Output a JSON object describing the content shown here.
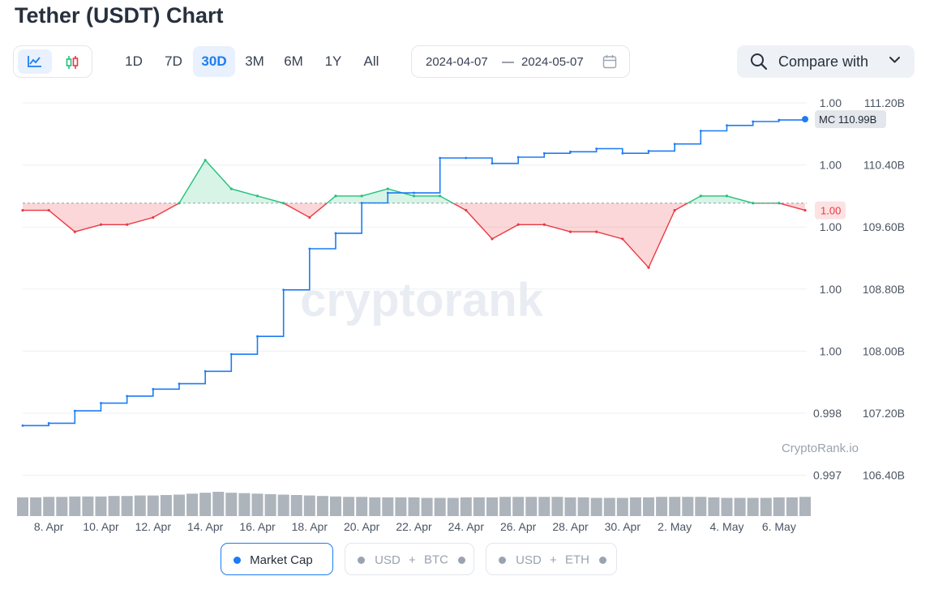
{
  "page": {
    "title": "Tether (USDT) Chart"
  },
  "toolbar": {
    "chart_types": [
      {
        "name": "line-chart-icon",
        "active": true
      },
      {
        "name": "candlestick-chart-icon",
        "active": false
      }
    ],
    "ranges": [
      "1D",
      "7D",
      "30D",
      "3M",
      "6M",
      "1Y",
      "All"
    ],
    "active_range": "30D",
    "date_from": "2024-04-07",
    "date_sep": "—",
    "date_to": "2024-05-07",
    "compare_label": "Compare with",
    "icons": {
      "calendar": "calendar-icon",
      "search": "search-icon",
      "chevron": "chevron-down-icon"
    }
  },
  "legend": {
    "market_cap": "Market Cap",
    "usd_btc": {
      "left": "USD",
      "plus": "+",
      "right": "BTC"
    },
    "usd_eth": {
      "left": "USD",
      "plus": "+",
      "right": "ETH"
    }
  },
  "watermark_small": "CryptoRank.io",
  "watermark_big": "cryptorank",
  "colors": {
    "marketcap": "#1c7cf4",
    "up": "#22c07a",
    "down": "#ea3943",
    "grid": "#eceff3",
    "axis_text": "#4b5563"
  },
  "chart_data": {
    "type": "line",
    "x_labels": [
      "8. Apr",
      "10. Apr",
      "12. Apr",
      "14. Apr",
      "16. Apr",
      "18. Apr",
      "20. Apr",
      "22. Apr",
      "24. Apr",
      "26. Apr",
      "28. Apr",
      "30. Apr",
      "2. May",
      "4. May",
      "6. May"
    ],
    "price_ticks": [
      "1.00",
      "1.00",
      "1.00",
      "1.00",
      "1.00",
      "0.998",
      "0.997"
    ],
    "mcap_ticks": [
      "111.20B",
      "110.40B",
      "109.60B",
      "108.80B",
      "108.00B",
      "107.20B",
      "106.40B"
    ],
    "mcap_ylim": [
      106.4,
      111.2
    ],
    "price_ylim": [
      0.9965,
      1.0017
    ],
    "baseline_price": 1.0003,
    "mc_label": "MC 110.99B",
    "price_label": "1.00",
    "series": [
      {
        "name": "Market Cap",
        "axis": "right",
        "points": [
          [
            "7. Apr",
            107.04
          ],
          [
            "8. Apr",
            107.07
          ],
          [
            "9. Apr",
            107.23
          ],
          [
            "10. Apr",
            107.33
          ],
          [
            "11. Apr",
            107.42
          ],
          [
            "12. Apr",
            107.51
          ],
          [
            "13. Apr",
            107.58
          ],
          [
            "14. Apr",
            107.74
          ],
          [
            "15. Apr",
            107.96
          ],
          [
            "16. Apr",
            108.19
          ],
          [
            "17. Apr",
            108.79
          ],
          [
            "18. Apr",
            109.32
          ],
          [
            "19. Apr",
            109.52
          ],
          [
            "20. Apr",
            109.91
          ],
          [
            "21. Apr",
            110.04
          ],
          [
            "22. Apr",
            110.04
          ],
          [
            "23. Apr",
            110.49
          ],
          [
            "24. Apr",
            110.49
          ],
          [
            "25. Apr",
            110.42
          ],
          [
            "26. Apr",
            110.5
          ],
          [
            "27. Apr",
            110.55
          ],
          [
            "28. Apr",
            110.57
          ],
          [
            "29. Apr",
            110.61
          ],
          [
            "30. Apr",
            110.55
          ],
          [
            "1. May",
            110.58
          ],
          [
            "2. May",
            110.67
          ],
          [
            "3. May",
            110.84
          ],
          [
            "4. May",
            110.91
          ],
          [
            "5. May",
            110.96
          ],
          [
            "6. May",
            110.98
          ],
          [
            "7. May",
            110.99
          ]
        ]
      },
      {
        "name": "Price",
        "axis": "left",
        "points": [
          [
            "7. Apr",
            1.0002
          ],
          [
            "8. Apr",
            1.0002
          ],
          [
            "9. Apr",
            0.9999
          ],
          [
            "10. Apr",
            1.0
          ],
          [
            "11. Apr",
            1.0
          ],
          [
            "12. Apr",
            1.0001
          ],
          [
            "13. Apr",
            1.0003
          ],
          [
            "14. Apr",
            1.0009
          ],
          [
            "15. Apr",
            1.0005
          ],
          [
            "16. Apr",
            1.0004
          ],
          [
            "17. Apr",
            1.0003
          ],
          [
            "18. Apr",
            1.0001
          ],
          [
            "19. Apr",
            1.0004
          ],
          [
            "20. Apr",
            1.0004
          ],
          [
            "21. Apr",
            1.0005
          ],
          [
            "22. Apr",
            1.0004
          ],
          [
            "23. Apr",
            1.0004
          ],
          [
            "24. Apr",
            1.0002
          ],
          [
            "25. Apr",
            0.9998
          ],
          [
            "26. Apr",
            1.0
          ],
          [
            "27. Apr",
            1.0
          ],
          [
            "28. Apr",
            0.9999
          ],
          [
            "29. Apr",
            0.9999
          ],
          [
            "30. Apr",
            0.9998
          ],
          [
            "1. May",
            0.9994
          ],
          [
            "2. May",
            1.0002
          ],
          [
            "3. May",
            1.0004
          ],
          [
            "4. May",
            1.0004
          ],
          [
            "5. May",
            1.0003
          ],
          [
            "6. May",
            1.0003
          ],
          [
            "7. May",
            1.0002
          ]
        ]
      },
      {
        "name": "Volume",
        "axis": "none",
        "values": [
          40,
          40,
          41,
          41,
          42,
          42,
          42,
          43,
          43,
          44,
          44,
          45,
          46,
          48,
          50,
          52,
          50,
          49,
          48,
          47,
          46,
          45,
          44,
          43,
          42,
          41,
          41,
          40,
          40,
          40,
          40,
          39,
          39,
          39,
          40,
          40,
          40,
          41,
          41,
          41,
          41,
          41,
          40,
          40,
          39,
          39,
          39,
          40,
          40,
          41,
          41,
          41,
          41,
          40,
          39,
          39,
          39,
          39,
          40,
          40,
          41
        ]
      }
    ]
  }
}
